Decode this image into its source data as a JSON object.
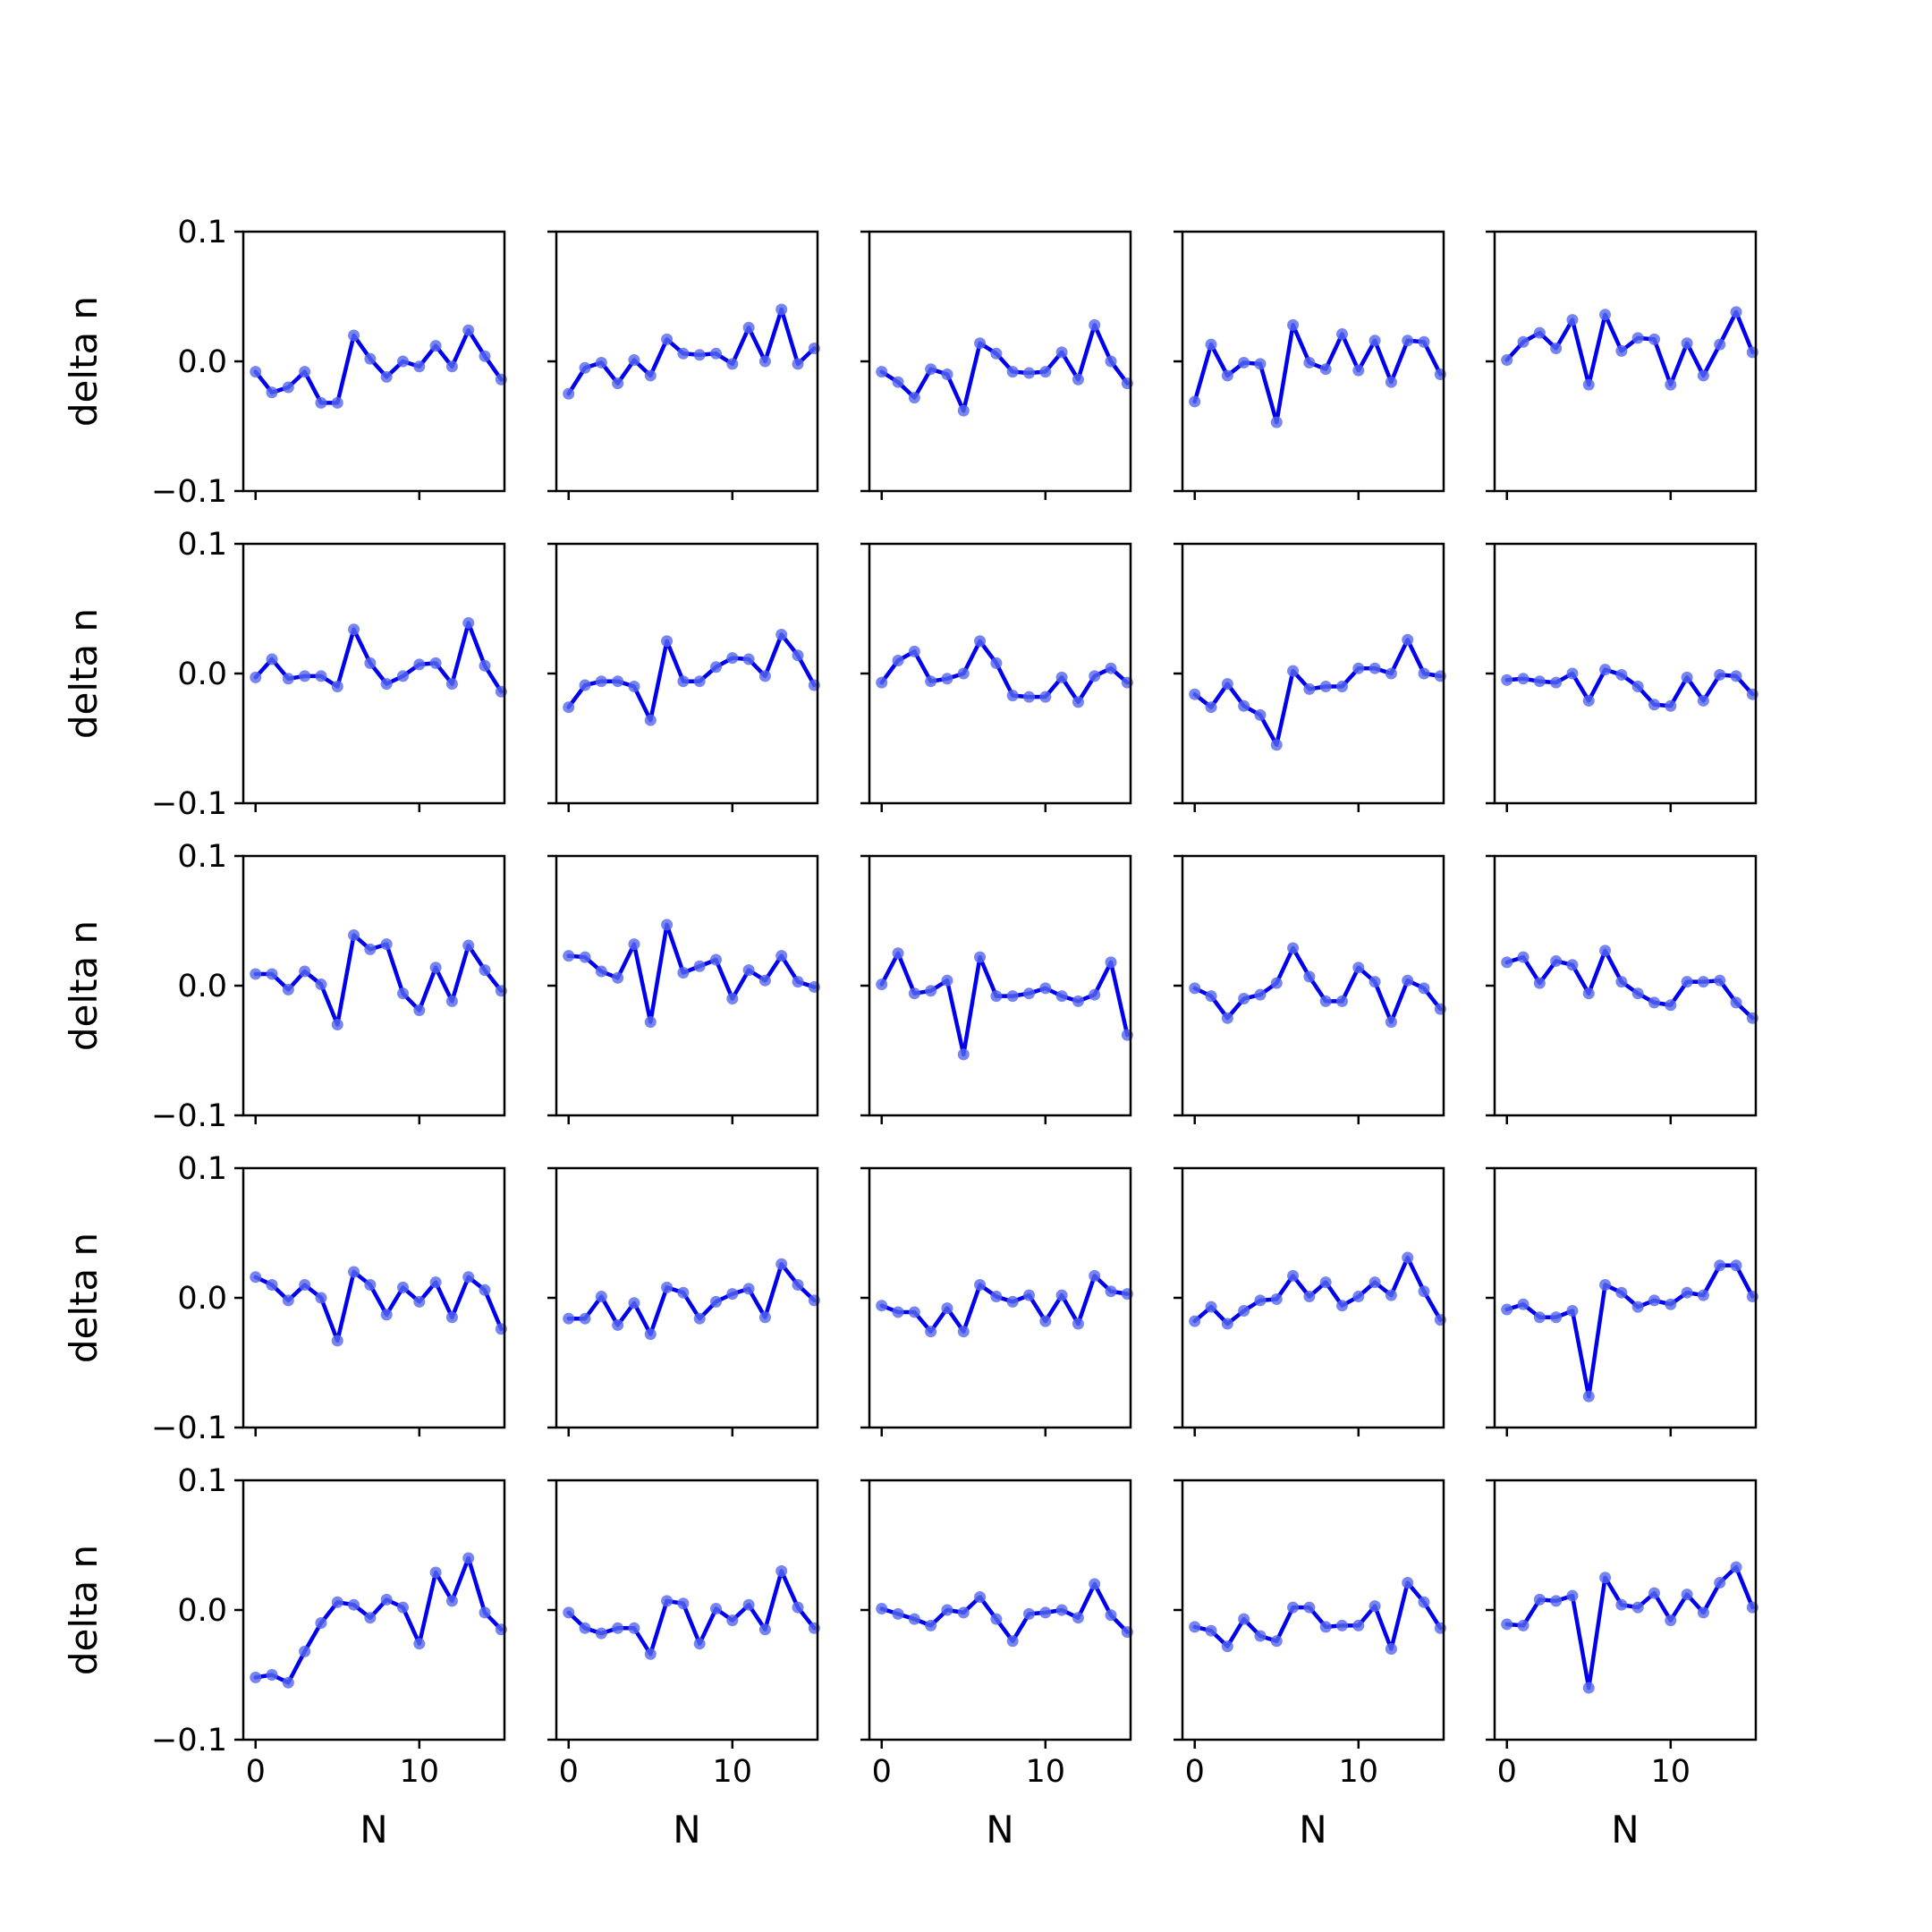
{
  "chart_data": {
    "type": "line",
    "layout": {
      "rows": 5,
      "cols": 5,
      "sharex": true,
      "sharey": true
    },
    "x": [
      0,
      1,
      2,
      3,
      4,
      5,
      6,
      7,
      8,
      9,
      10,
      11,
      12,
      13,
      14,
      15
    ],
    "xlabel": "N",
    "ylabel": "delta n",
    "xlim": [
      -0.75,
      15.2
    ],
    "ylim": [
      -0.1,
      0.1
    ],
    "xticks": [
      0,
      10
    ],
    "xtick_labels": [
      "0",
      "10"
    ],
    "yticks": [
      -0.1,
      0.0,
      0.1
    ],
    "ytick_labels": [
      "−0.1",
      "0.0",
      "0.1"
    ],
    "grid": false,
    "line_color": "#0000ee",
    "marker_color": "#5566ee",
    "panels": [
      {
        "row": 0,
        "col": 0,
        "values": [
          -0.008,
          -0.024,
          -0.02,
          -0.008,
          -0.032,
          -0.032,
          0.02,
          0.002,
          -0.012,
          0.0,
          -0.004,
          0.012,
          -0.004,
          0.024,
          0.004,
          -0.014
        ]
      },
      {
        "row": 0,
        "col": 1,
        "values": [
          -0.025,
          -0.005,
          -0.001,
          -0.017,
          0.001,
          -0.011,
          0.017,
          0.006,
          0.005,
          0.006,
          -0.002,
          0.026,
          0.0,
          0.04,
          -0.002,
          0.01
        ]
      },
      {
        "row": 0,
        "col": 2,
        "values": [
          -0.008,
          -0.016,
          -0.028,
          -0.006,
          -0.01,
          -0.038,
          0.014,
          0.006,
          -0.008,
          -0.009,
          -0.008,
          0.007,
          -0.014,
          0.028,
          0.0,
          -0.017
        ]
      },
      {
        "row": 0,
        "col": 3,
        "values": [
          -0.031,
          0.013,
          -0.011,
          -0.001,
          -0.002,
          -0.047,
          0.028,
          -0.001,
          -0.006,
          0.021,
          -0.007,
          0.016,
          -0.016,
          0.016,
          0.015,
          -0.01
        ]
      },
      {
        "row": 0,
        "col": 4,
        "values": [
          0.001,
          0.015,
          0.022,
          0.01,
          0.032,
          -0.018,
          0.036,
          0.008,
          0.018,
          0.017,
          -0.018,
          0.014,
          -0.011,
          0.013,
          0.038,
          0.007
        ]
      },
      {
        "row": 1,
        "col": 0,
        "values": [
          -0.003,
          0.011,
          -0.004,
          -0.002,
          -0.002,
          -0.01,
          0.034,
          0.008,
          -0.008,
          -0.002,
          0.007,
          0.008,
          -0.008,
          0.039,
          0.006,
          -0.014
        ]
      },
      {
        "row": 1,
        "col": 1,
        "values": [
          -0.026,
          -0.009,
          -0.006,
          -0.006,
          -0.01,
          -0.036,
          0.025,
          -0.006,
          -0.006,
          0.005,
          0.012,
          0.011,
          -0.002,
          0.03,
          0.014,
          -0.009
        ]
      },
      {
        "row": 1,
        "col": 2,
        "values": [
          -0.007,
          0.01,
          0.017,
          -0.006,
          -0.004,
          0.0,
          0.025,
          0.008,
          -0.017,
          -0.018,
          -0.018,
          -0.003,
          -0.022,
          -0.002,
          0.004,
          -0.007
        ]
      },
      {
        "row": 1,
        "col": 3,
        "values": [
          -0.016,
          -0.026,
          -0.008,
          -0.025,
          -0.032,
          -0.055,
          0.002,
          -0.012,
          -0.01,
          -0.01,
          0.004,
          0.004,
          0.0,
          0.026,
          0.0,
          -0.002
        ]
      },
      {
        "row": 1,
        "col": 4,
        "values": [
          -0.005,
          -0.004,
          -0.006,
          -0.007,
          0.0,
          -0.021,
          0.003,
          -0.001,
          -0.01,
          -0.024,
          -0.025,
          -0.003,
          -0.021,
          -0.001,
          -0.002,
          -0.016
        ]
      },
      {
        "row": 2,
        "col": 0,
        "values": [
          0.009,
          0.009,
          -0.003,
          0.011,
          0.001,
          -0.03,
          0.039,
          0.028,
          0.032,
          -0.006,
          -0.019,
          0.014,
          -0.012,
          0.031,
          0.012,
          -0.004
        ]
      },
      {
        "row": 2,
        "col": 1,
        "values": [
          0.023,
          0.022,
          0.011,
          0.006,
          0.032,
          -0.028,
          0.047,
          0.01,
          0.015,
          0.02,
          -0.01,
          0.012,
          0.004,
          0.023,
          0.003,
          -0.001
        ]
      },
      {
        "row": 2,
        "col": 2,
        "values": [
          0.001,
          0.025,
          -0.006,
          -0.004,
          0.004,
          -0.053,
          0.022,
          -0.008,
          -0.008,
          -0.006,
          -0.002,
          -0.008,
          -0.012,
          -0.007,
          0.018,
          -0.038
        ]
      },
      {
        "row": 2,
        "col": 3,
        "values": [
          -0.002,
          -0.008,
          -0.025,
          -0.01,
          -0.007,
          0.002,
          0.029,
          0.007,
          -0.012,
          -0.012,
          0.014,
          0.003,
          -0.028,
          0.004,
          -0.002,
          -0.018
        ]
      },
      {
        "row": 2,
        "col": 4,
        "values": [
          0.018,
          0.022,
          0.002,
          0.019,
          0.016,
          -0.006,
          0.027,
          0.003,
          -0.006,
          -0.013,
          -0.015,
          0.003,
          0.003,
          0.004,
          -0.013,
          -0.025
        ]
      },
      {
        "row": 3,
        "col": 0,
        "values": [
          0.016,
          0.01,
          -0.002,
          0.01,
          0.0,
          -0.033,
          0.02,
          0.01,
          -0.013,
          0.008,
          -0.003,
          0.012,
          -0.015,
          0.016,
          0.006,
          -0.024
        ]
      },
      {
        "row": 3,
        "col": 1,
        "values": [
          -0.016,
          -0.016,
          0.001,
          -0.021,
          -0.004,
          -0.028,
          0.008,
          0.004,
          -0.016,
          -0.003,
          0.003,
          0.007,
          -0.015,
          0.026,
          0.01,
          -0.002
        ]
      },
      {
        "row": 3,
        "col": 2,
        "values": [
          -0.006,
          -0.011,
          -0.011,
          -0.026,
          -0.008,
          -0.026,
          0.01,
          0.001,
          -0.003,
          0.002,
          -0.018,
          0.002,
          -0.02,
          0.017,
          0.005,
          0.003
        ]
      },
      {
        "row": 3,
        "col": 3,
        "values": [
          -0.018,
          -0.007,
          -0.02,
          -0.01,
          -0.002,
          -0.001,
          0.017,
          0.001,
          0.012,
          -0.006,
          0.001,
          0.012,
          0.002,
          0.031,
          0.005,
          -0.017
        ]
      },
      {
        "row": 3,
        "col": 4,
        "values": [
          -0.009,
          -0.005,
          -0.015,
          -0.015,
          -0.01,
          -0.076,
          0.01,
          0.004,
          -0.007,
          -0.002,
          -0.005,
          0.004,
          0.002,
          0.025,
          0.025,
          0.001
        ]
      },
      {
        "row": 4,
        "col": 0,
        "values": [
          -0.052,
          -0.05,
          -0.056,
          -0.032,
          -0.01,
          0.006,
          0.004,
          -0.006,
          0.008,
          0.002,
          -0.026,
          0.029,
          0.007,
          0.04,
          -0.002,
          -0.015
        ]
      },
      {
        "row": 4,
        "col": 1,
        "values": [
          -0.002,
          -0.014,
          -0.018,
          -0.014,
          -0.014,
          -0.034,
          0.007,
          0.005,
          -0.026,
          0.001,
          -0.008,
          0.004,
          -0.015,
          0.03,
          0.002,
          -0.014
        ]
      },
      {
        "row": 4,
        "col": 2,
        "values": [
          0.001,
          -0.003,
          -0.007,
          -0.012,
          0.0,
          -0.002,
          0.01,
          -0.007,
          -0.024,
          -0.003,
          -0.002,
          0.0,
          -0.006,
          0.02,
          -0.004,
          -0.017
        ]
      },
      {
        "row": 4,
        "col": 3,
        "values": [
          -0.013,
          -0.016,
          -0.028,
          -0.007,
          -0.02,
          -0.024,
          0.002,
          0.002,
          -0.013,
          -0.012,
          -0.012,
          0.003,
          -0.03,
          0.021,
          0.006,
          -0.014
        ]
      },
      {
        "row": 4,
        "col": 4,
        "values": [
          -0.011,
          -0.012,
          0.008,
          0.007,
          0.011,
          -0.06,
          0.025,
          0.004,
          0.002,
          0.013,
          -0.008,
          0.012,
          -0.002,
          0.021,
          0.033,
          0.002
        ]
      }
    ]
  }
}
